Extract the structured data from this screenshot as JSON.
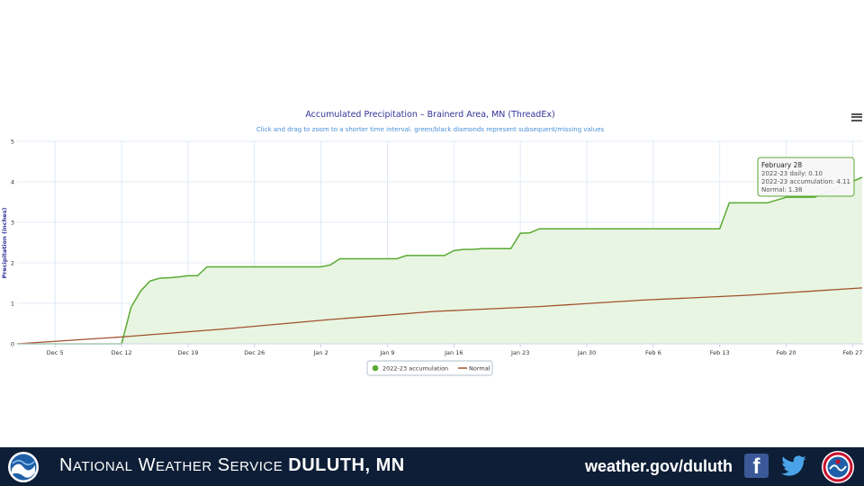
{
  "chart_data": {
    "type": "line",
    "title": "Accumulated Precipitation – Brainerd Area, MN (ThreadEx)",
    "subtitle": "Click and drag to zoom to a shorter time interval. green/black diamonds represent subsequent/missing values",
    "ylabel": "Precipitation (inches)",
    "ylim": [
      0,
      5
    ],
    "yticks": [
      "0",
      "1",
      "2",
      "3",
      "4",
      "5"
    ],
    "xrange": [
      0,
      89
    ],
    "xticks": [
      {
        "label": "Dec 5",
        "x": 4
      },
      {
        "label": "Dec 12",
        "x": 11
      },
      {
        "label": "Dec 19",
        "x": 18
      },
      {
        "label": "Dec 26",
        "x": 25
      },
      {
        "label": "Jan 2",
        "x": 32
      },
      {
        "label": "Jan 9",
        "x": 39
      },
      {
        "label": "Jan 16",
        "x": 46
      },
      {
        "label": "Jan 23",
        "x": 53
      },
      {
        "label": "Jan 30",
        "x": 60
      },
      {
        "label": "Feb 6",
        "x": 67
      },
      {
        "label": "Feb 13",
        "x": 74
      },
      {
        "label": "Feb 20",
        "x": 81
      },
      {
        "label": "Feb 27",
        "x": 88
      }
    ],
    "grid": true,
    "legend_position": "bottom-center",
    "series": [
      {
        "name": "2022-23 accumulation",
        "color": "#5aaa32",
        "fill": "#e8f5e2",
        "points": [
          [
            0,
            0
          ],
          [
            11,
            0
          ],
          [
            12,
            0.9
          ],
          [
            13,
            1.3
          ],
          [
            14,
            1.55
          ],
          [
            15,
            1.62
          ],
          [
            16,
            1.63
          ],
          [
            17,
            1.65
          ],
          [
            18,
            1.68
          ],
          [
            19,
            1.68
          ],
          [
            20,
            1.9
          ],
          [
            21,
            1.9
          ],
          [
            22,
            1.9
          ],
          [
            30,
            1.9
          ],
          [
            32,
            1.9
          ],
          [
            33,
            1.95
          ],
          [
            34,
            2.1
          ],
          [
            39,
            2.1
          ],
          [
            40,
            2.1
          ],
          [
            41,
            2.18
          ],
          [
            43,
            2.18
          ],
          [
            45,
            2.18
          ],
          [
            46,
            2.3
          ],
          [
            47,
            2.33
          ],
          [
            48,
            2.33
          ],
          [
            49,
            2.35
          ],
          [
            52,
            2.35
          ],
          [
            53,
            2.73
          ],
          [
            54,
            2.74
          ],
          [
            55,
            2.84
          ],
          [
            70,
            2.84
          ],
          [
            74,
            2.84
          ],
          [
            75,
            3.48
          ],
          [
            79,
            3.48
          ],
          [
            80,
            3.55
          ],
          [
            81,
            3.62
          ],
          [
            83,
            3.62
          ],
          [
            84,
            3.62
          ],
          [
            88,
            4.01
          ],
          [
            89,
            4.11
          ]
        ]
      },
      {
        "name": "Normal",
        "color": "#a0522d",
        "points": [
          [
            0,
            0
          ],
          [
            11,
            0.17
          ],
          [
            22,
            0.37
          ],
          [
            33,
            0.6
          ],
          [
            44,
            0.8
          ],
          [
            55,
            0.92
          ],
          [
            66,
            1.08
          ],
          [
            77,
            1.2
          ],
          [
            89,
            1.38
          ]
        ]
      }
    ],
    "tooltip": {
      "title": "February 28",
      "lines": [
        "2022-23 daily: 0.10",
        "2022-23 accumulation: 4.11",
        "Normal: 1.38"
      ]
    }
  },
  "footer": {
    "org_prefix_N": "N",
    "org_prefix_rest": "ATIONAL",
    "org_w": "W",
    "org_w_rest": "EATHER",
    "org_s": "S",
    "org_s_rest": "ERVICE",
    "office": "DULUTH, MN",
    "url": "weather.gov/duluth",
    "facebook_glyph": "f"
  }
}
